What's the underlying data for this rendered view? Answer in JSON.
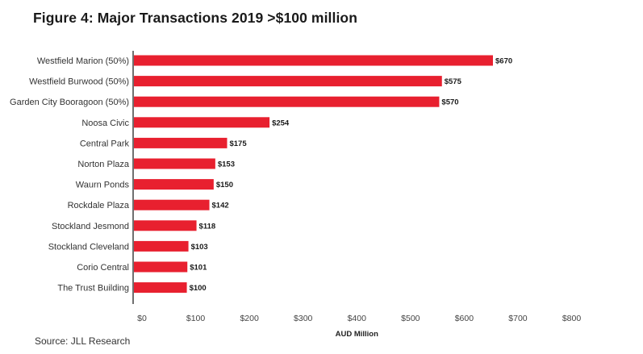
{
  "title": "Figure 4: Major Transactions 2019 >$100 million",
  "source": "Source: JLL Research",
  "chart_data": {
    "type": "bar",
    "orientation": "horizontal",
    "title": "Figure 4: Major Transactions 2019 >$100 million",
    "xlabel": "AUD Million",
    "ylabel": "",
    "categories": [
      "Westfield Marion (50%)",
      "Westfield Burwood (50%)",
      "Garden City Booragoon (50%)",
      "Noosa Civic",
      "Central Park",
      "Norton Plaza",
      "Waurn Ponds",
      "Rockdale Plaza",
      "Stockland Jesmond",
      "Stockland Cleveland",
      "Corio Central",
      "The Trust Building"
    ],
    "values": [
      670,
      575,
      570,
      254,
      175,
      153,
      150,
      142,
      118,
      103,
      101,
      100
    ],
    "data_labels": [
      "$670",
      "$575",
      "$570",
      "$254",
      "$175",
      "$153",
      "$150",
      "$142",
      "$118",
      "$103",
      "$101",
      "$100"
    ],
    "xlim": [
      0,
      800
    ],
    "xticks": [
      0,
      100,
      200,
      300,
      400,
      500,
      600,
      700,
      800
    ],
    "xtick_labels": [
      "$0",
      "$100",
      "$200",
      "$300",
      "$400",
      "$500",
      "$600",
      "$700",
      "$800"
    ],
    "grid": false,
    "legend": "none",
    "bar_color": "#e8202f"
  }
}
